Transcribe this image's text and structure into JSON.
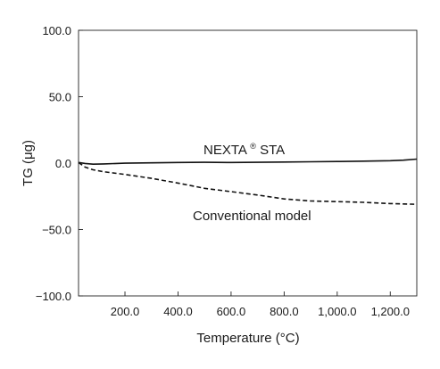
{
  "chart_data": {
    "type": "line",
    "title": "",
    "xlabel": "Temperature (°C)",
    "ylabel": "TG (μg)",
    "xlim": [
      25,
      1300
    ],
    "ylim": [
      -100,
      100
    ],
    "grid": false,
    "legend": "none",
    "x_ticks": [
      200,
      400,
      600,
      800,
      1000,
      1200
    ],
    "x_tick_labels": [
      "200.0",
      "400.0",
      "600.0",
      "800.0",
      "1,000.0",
      "1,200.0"
    ],
    "y_ticks": [
      100,
      50,
      0,
      -50,
      -100
    ],
    "y_tick_labels": [
      "100.0",
      "50.0",
      "0.0",
      "−50.0",
      "−100.0"
    ],
    "series": [
      {
        "name": "NEXTA® STA",
        "label_main": "NEXTA",
        "label_sup": "®",
        "label_tail": " STA",
        "style": "solid",
        "color": "#111111",
        "x": [
          25,
          50,
          80,
          120,
          200,
          300,
          400,
          500,
          600,
          700,
          800,
          900,
          1000,
          1100,
          1200,
          1250,
          1300
        ],
        "y": [
          0.5,
          -0.3,
          -0.8,
          -0.6,
          -0.1,
          0.2,
          0.5,
          0.6,
          0.5,
          0.6,
          0.8,
          1.0,
          1.2,
          1.5,
          1.8,
          2.2,
          3.0
        ]
      },
      {
        "name": "Conventional model",
        "style": "dashed",
        "color": "#111111",
        "x": [
          25,
          50,
          80,
          120,
          200,
          300,
          400,
          500,
          600,
          700,
          800,
          900,
          1000,
          1100,
          1200,
          1300
        ],
        "y": [
          0.5,
          -3,
          -5,
          -6.5,
          -8.5,
          -11.5,
          -15,
          -19,
          -21.5,
          -24,
          -27,
          -28.5,
          -29,
          -29.5,
          -30.5,
          -31
        ]
      }
    ]
  }
}
